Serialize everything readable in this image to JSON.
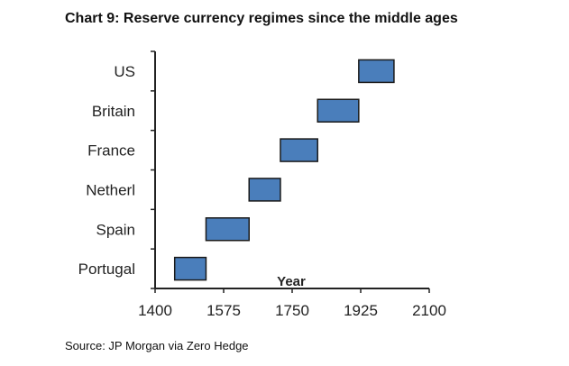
{
  "title": "Chart 9:  Reserve currency regimes since the middle ages",
  "source": "Source: JP Morgan via Zero Hedge",
  "chart_data": {
    "type": "bar",
    "orientation": "horizontal-range",
    "xlabel": "Year",
    "ylabel": "",
    "xlim": [
      1400,
      2100
    ],
    "xticks": [
      1400,
      1575,
      1750,
      1925,
      2100
    ],
    "grid": false,
    "categories": [
      "Portugal",
      "Spain",
      "Netherl",
      "France",
      "Britain",
      "US"
    ],
    "ranges": [
      {
        "category": "Portugal",
        "start": 1450,
        "end": 1530
      },
      {
        "category": "Spain",
        "start": 1530,
        "end": 1640
      },
      {
        "category": "Netherl",
        "start": 1640,
        "end": 1720
      },
      {
        "category": "France",
        "start": 1720,
        "end": 1815
      },
      {
        "category": "Britain",
        "start": 1815,
        "end": 1920
      },
      {
        "category": "US",
        "start": 1920,
        "end": 2010
      }
    ],
    "bar_color": "#4a7ebb",
    "bar_edge": "#1a1a1a"
  }
}
